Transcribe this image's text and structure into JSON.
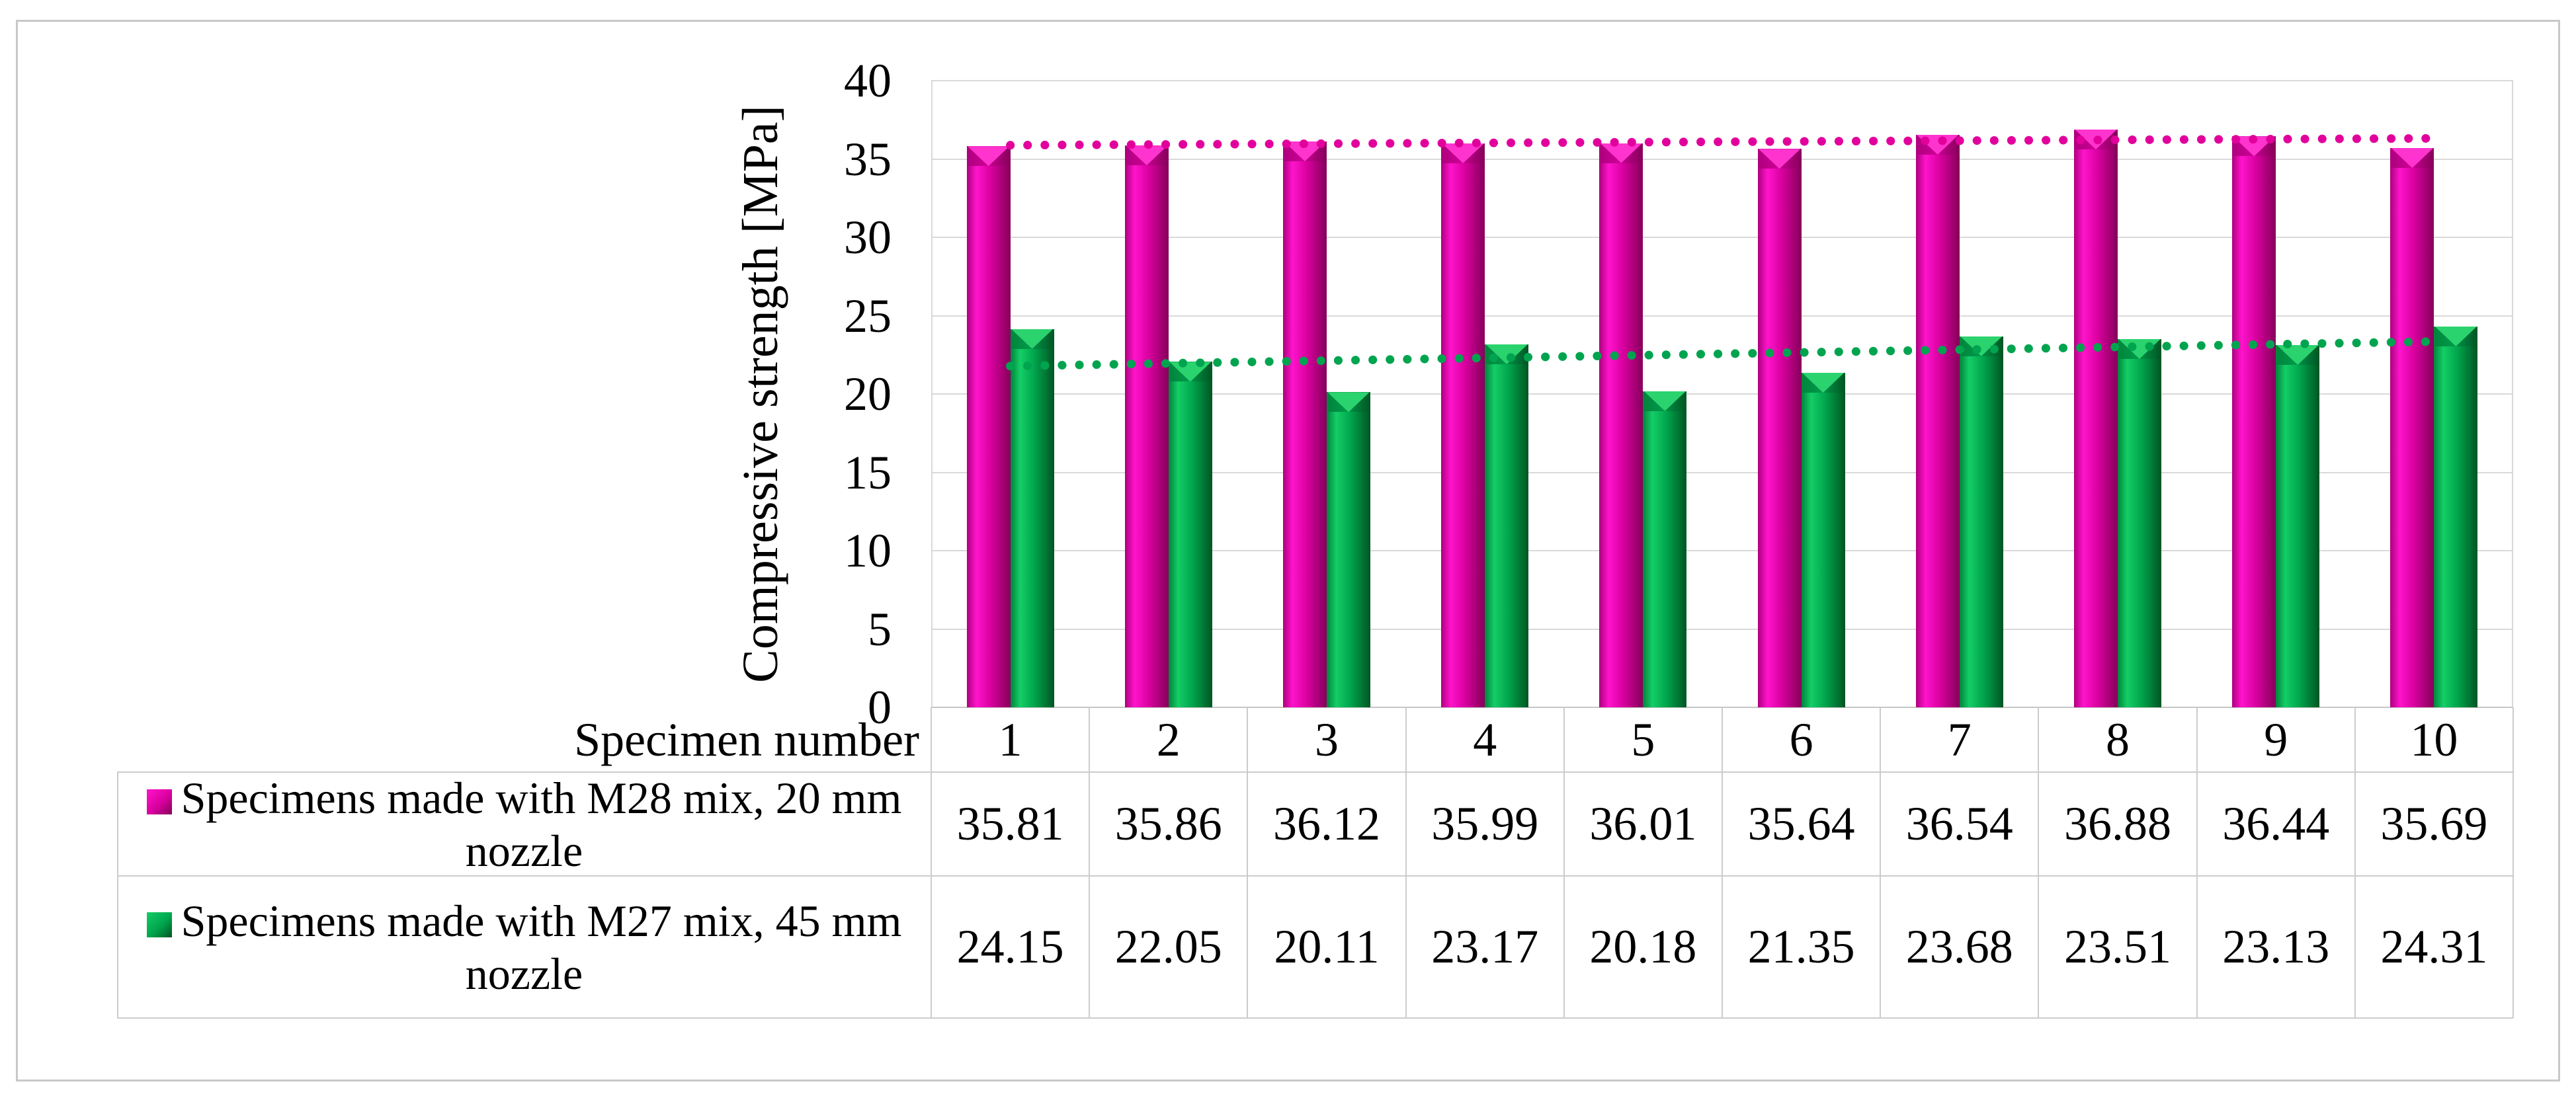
{
  "chart_data": {
    "type": "bar",
    "title": "",
    "ylabel": "Compressive strength [MPa]",
    "x_row_header": "Specimen number",
    "categories": [
      "1",
      "2",
      "3",
      "4",
      "5",
      "6",
      "7",
      "8",
      "9",
      "10"
    ],
    "ylim": [
      0,
      40
    ],
    "ytick_step": 5,
    "grid": true,
    "legend_position": "table-left",
    "trendlines": true,
    "series": [
      {
        "name": "Specimens made with M28 mix, 20 mm nozzle",
        "values": [
          35.81,
          35.86,
          36.12,
          35.99,
          36.01,
          35.64,
          36.54,
          36.88,
          36.44,
          35.69
        ],
        "color_main": "#D8009E",
        "color_bright": "#FF14CC",
        "color_edge": "#AD007D",
        "color_dark": "#850059",
        "cap_base": "#CC0096",
        "cap_v": "#FF33CE",
        "trend_color": "#E2009C"
      },
      {
        "name": "Specimens made with M27 mix, 45 mm nozzle",
        "values": [
          24.15,
          22.05,
          20.11,
          23.17,
          20.18,
          21.35,
          23.68,
          23.51,
          23.13,
          24.31
        ],
        "color_main": "#00A44C",
        "color_bright": "#14CE66",
        "color_edge": "#00843C",
        "color_dark": "#005523",
        "cap_base": "#00994A",
        "cap_v": "#2BD36E",
        "trend_color": "#00A44F"
      }
    ]
  }
}
